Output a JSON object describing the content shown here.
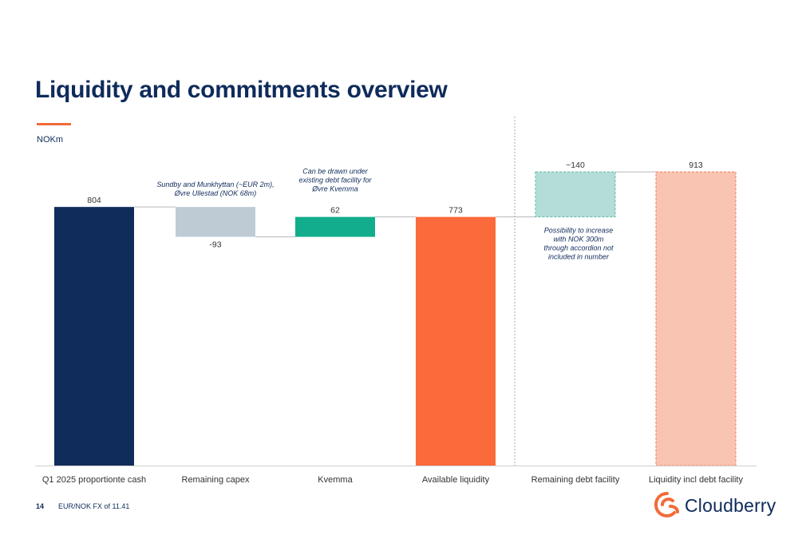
{
  "title": "Liquidity and commitments overview",
  "unit": "NOKm",
  "footer": {
    "page": "14",
    "note": "EUR/NOK FX of 11.41"
  },
  "brand": {
    "name": "Cloudberry",
    "logo_icon": "cloudberry-logo-icon"
  },
  "colors": {
    "navy": "#102c5a",
    "capex": "#becbd4",
    "kvemma": "#12ad8c",
    "available": "#fb6a3b",
    "facility": "#b4ddd8",
    "facility_border": "#5cbcab",
    "total": "#f9c4b2",
    "total_border": "#f27a55",
    "connector": "#b7b7b7",
    "axis": "#cfcfcf",
    "label": "#333333"
  },
  "chart_data": {
    "type": "bar",
    "subtype": "waterfall",
    "ylim": [
      0,
      1200
    ],
    "bars": [
      {
        "category": "Q1 2025 proportionte cash",
        "kind": "total",
        "base": 0,
        "top": 804,
        "label": "804",
        "color": "navy"
      },
      {
        "category": "Remaining capex",
        "kind": "delta",
        "base": 711,
        "top": 804,
        "label": "-93",
        "color": "capex",
        "annotation": [
          "Sundby and Munkhyttan (~EUR 2m),",
          "Øvre Ullestad (NOK 68m)"
        ]
      },
      {
        "category": "Kvemma",
        "kind": "delta",
        "base": 711,
        "top": 773,
        "label": "62",
        "color": "kvemma",
        "annotation": [
          "Can be drawn  under",
          "existing debt facility for",
          "Øvre Kvemma"
        ]
      },
      {
        "category": "Available liquidity",
        "kind": "total",
        "base": 0,
        "top": 773,
        "label": "773",
        "color": "available"
      },
      {
        "category": "Remaining debt facility",
        "kind": "delta_dashed",
        "base": 773,
        "top": 913,
        "label": "~140",
        "color": "facility",
        "annotation_below": [
          "Possibility to increase",
          "with NOK 300m",
          "through accordion not",
          "included in number"
        ]
      },
      {
        "category": "Liquidity incl debt facility",
        "kind": "total_dashed",
        "base": 0,
        "top": 913,
        "label": "913",
        "color": "total"
      }
    ]
  }
}
